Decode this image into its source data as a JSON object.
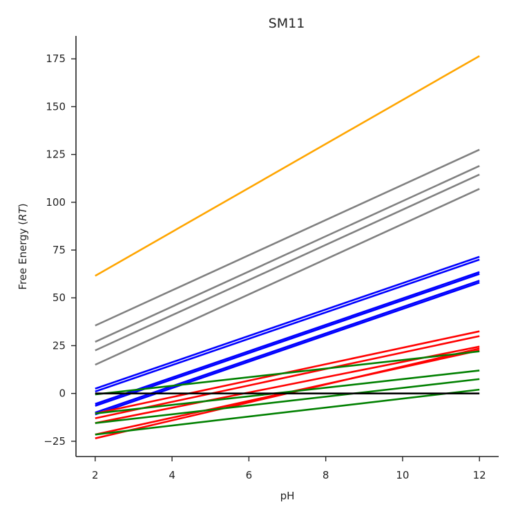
{
  "chart_data": {
    "type": "line",
    "title": "SM11",
    "xlabel": "pH",
    "ylabel_prefix": "Free Energy (",
    "ylabel_italic": "RT",
    "ylabel_suffix": ")",
    "xlim": [
      1.5,
      12.5
    ],
    "ylim": [
      -33,
      187
    ],
    "xticks": [
      2,
      4,
      6,
      8,
      10,
      12
    ],
    "yticks": [
      -25,
      0,
      25,
      50,
      75,
      100,
      125,
      150,
      175
    ],
    "grid": false,
    "x": [
      2,
      12
    ],
    "series": [
      {
        "color": "#ffa500",
        "values": [
          61.5,
          176.5
        ]
      },
      {
        "color": "#808080",
        "values": [
          35.5,
          127.5
        ]
      },
      {
        "color": "#808080",
        "values": [
          27,
          119
        ]
      },
      {
        "color": "#808080",
        "values": [
          22.5,
          114.5
        ]
      },
      {
        "color": "#808080",
        "values": [
          15,
          107
        ]
      },
      {
        "color": "#0000ff",
        "values": [
          2.5,
          71.5
        ]
      },
      {
        "color": "#0000ff",
        "values": [
          1,
          70
        ]
      },
      {
        "color": "#0000ff",
        "values": [
          -5.5,
          63.5
        ]
      },
      {
        "color": "#0000ff",
        "values": [
          -6.5,
          62.5
        ]
      },
      {
        "color": "#0000ff",
        "values": [
          -10,
          59
        ]
      },
      {
        "color": "#0000ff",
        "values": [
          -11,
          58
        ]
      },
      {
        "color": "#ff0000",
        "values": [
          -10.5,
          32.5
        ]
      },
      {
        "color": "#ff0000",
        "values": [
          -13,
          30
        ]
      },
      {
        "color": "#ff0000",
        "values": [
          -15.5,
          24.5
        ]
      },
      {
        "color": "#ff0000",
        "values": [
          -21.5,
          22.5
        ]
      },
      {
        "color": "#ff0000",
        "values": [
          -23.5,
          23.5
        ]
      },
      {
        "color": "#008000",
        "values": [
          -0.5,
          22
        ]
      },
      {
        "color": "#008000",
        "values": [
          -10.5,
          12
        ]
      },
      {
        "color": "#008000",
        "values": [
          -15.5,
          7.5
        ]
      },
      {
        "color": "#008000",
        "values": [
          -21.5,
          2
        ]
      },
      {
        "color": "#000000",
        "values": [
          0,
          0
        ]
      }
    ]
  }
}
